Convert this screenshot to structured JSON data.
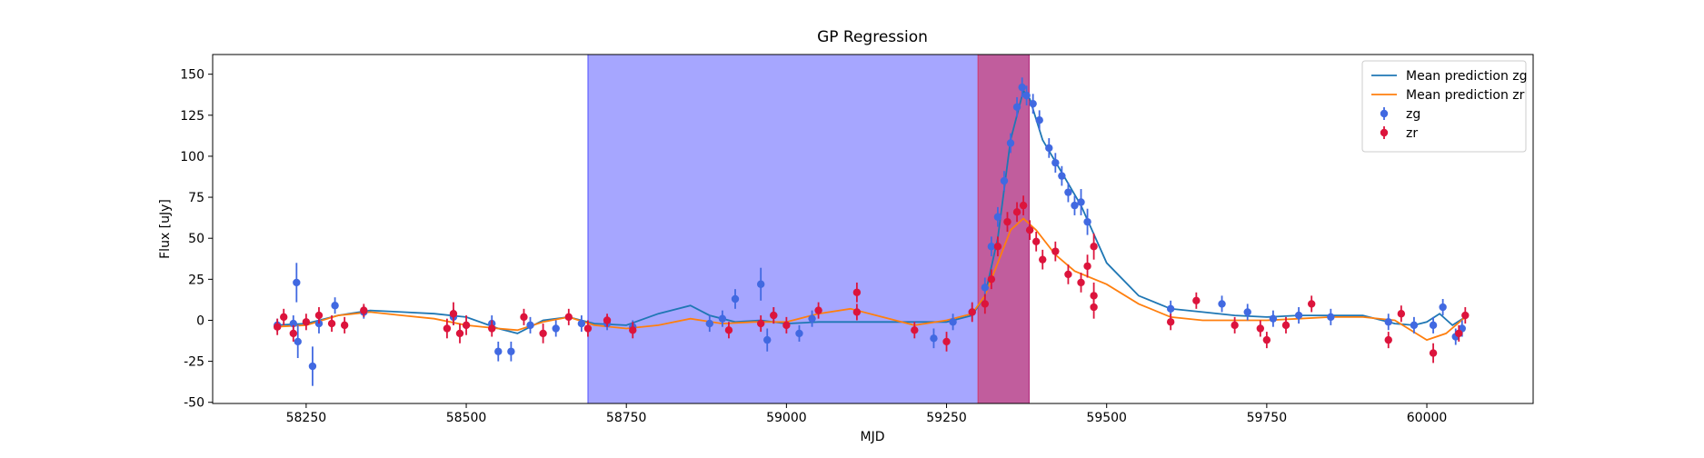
{
  "chart_data": {
    "type": "errorbar",
    "title": "GP Regression",
    "xlabel": "MJD",
    "ylabel": "Flux [uJy]",
    "xlim": [
      58104,
      60166
    ],
    "ylim": [
      -50.7,
      162
    ],
    "xticks": [
      58250,
      58500,
      58750,
      59000,
      59250,
      59500,
      59750,
      60000
    ],
    "yticks": [
      -50,
      -25,
      0,
      25,
      50,
      75,
      100,
      125,
      150
    ],
    "legend": "upper right",
    "spans": [
      {
        "start": 58690,
        "end": 59379,
        "color": "#0000ff",
        "alpha": 0.35
      },
      {
        "start": 59299,
        "end": 59379,
        "color": "#dc143c",
        "alpha": 0.5
      }
    ],
    "series": [
      {
        "name": "Mean prediction zg",
        "kind": "line",
        "color": "#1f77b4",
        "x": [
          58200,
          58250,
          58300,
          58350,
          58400,
          58450,
          58500,
          58550,
          58580,
          58620,
          58660,
          58700,
          58750,
          58800,
          58850,
          58880,
          58920,
          58960,
          59000,
          59050,
          59100,
          59150,
          59200,
          59250,
          59290,
          59310,
          59330,
          59350,
          59370,
          59380,
          59400,
          59430,
          59460,
          59500,
          59550,
          59600,
          59650,
          59700,
          59750,
          59800,
          59850,
          59900,
          59950,
          59980,
          60000,
          60020,
          60040,
          60060
        ],
        "values": [
          -3,
          -2,
          3,
          6,
          5,
          4,
          2,
          -5,
          -8,
          0,
          2,
          -2,
          -3,
          4,
          9,
          3,
          -1,
          0,
          -2,
          -1,
          -1,
          -1,
          -1,
          -1,
          3,
          15,
          50,
          110,
          140,
          135,
          110,
          90,
          70,
          35,
          15,
          7,
          5,
          3,
          2,
          3,
          3,
          3,
          -2,
          -3,
          -1,
          4,
          -3,
          2
        ]
      },
      {
        "name": "Mean prediction zr",
        "kind": "line",
        "color": "#ff7f0e",
        "x": [
          58200,
          58250,
          58300,
          58350,
          58400,
          58450,
          58500,
          58550,
          58580,
          58620,
          58660,
          58700,
          58750,
          58800,
          58850,
          58900,
          58950,
          59000,
          59050,
          59100,
          59150,
          59200,
          59250,
          59290,
          59310,
          59330,
          59350,
          59370,
          59390,
          59420,
          59450,
          59500,
          59550,
          59600,
          59650,
          59700,
          59750,
          59800,
          59850,
          59900,
          59950,
          60000,
          60030,
          60060
        ],
        "values": [
          -4,
          -3,
          3,
          5,
          3,
          1,
          -3,
          -5,
          -6,
          -1,
          2,
          -3,
          -5,
          -3,
          1,
          -2,
          -1,
          -1,
          4,
          7,
          2,
          -3,
          0,
          4,
          15,
          35,
          55,
          62,
          55,
          40,
          30,
          22,
          10,
          2,
          0,
          0,
          0,
          1,
          2,
          2,
          0,
          -12,
          -8,
          2
        ]
      },
      {
        "name": "zg",
        "kind": "points",
        "color": "#4169e1",
        "x": [
          58205,
          58230,
          58235,
          58237,
          58260,
          58270,
          58295,
          58340,
          58480,
          58540,
          58550,
          58570,
          58600,
          58640,
          58680,
          58720,
          58760,
          58880,
          58900,
          58920,
          58960,
          58970,
          58980,
          59020,
          59040,
          59230,
          59260,
          59290,
          59310,
          59320,
          59330,
          59340,
          59350,
          59360,
          59368,
          59375,
          59385,
          59395,
          59410,
          59420,
          59430,
          59440,
          59450,
          59460,
          59470,
          59600,
          59680,
          59720,
          59760,
          59800,
          59850,
          59940,
          59980,
          60010,
          60025,
          60045,
          60055
        ],
        "values": [
          -3,
          -2,
          23,
          -13,
          -28,
          -2,
          9,
          5,
          2,
          -2,
          -19,
          -19,
          -3,
          -5,
          -2,
          -2,
          -4,
          -2,
          1,
          13,
          22,
          -12,
          3,
          -8,
          1,
          -11,
          -1,
          5,
          20,
          45,
          63,
          85,
          108,
          130,
          142,
          137,
          132,
          122,
          105,
          96,
          88,
          78,
          70,
          72,
          60,
          7,
          10,
          5,
          1,
          3,
          2,
          -1,
          -3,
          -3,
          8,
          -10,
          -5
        ],
        "errors": [
          4,
          5,
          12,
          10,
          12,
          6,
          5,
          4,
          5,
          5,
          6,
          6,
          5,
          5,
          5,
          4,
          4,
          5,
          5,
          6,
          10,
          7,
          5,
          5,
          5,
          6,
          5,
          5,
          6,
          6,
          6,
          6,
          6,
          6,
          6,
          6,
          6,
          6,
          6,
          6,
          6,
          6,
          6,
          8,
          8,
          5,
          5,
          5,
          5,
          5,
          5,
          5,
          5,
          5,
          5,
          5,
          5
        ]
      },
      {
        "name": "zr",
        "kind": "points",
        "color": "#dc143c",
        "x": [
          58205,
          58215,
          58230,
          58250,
          58270,
          58290,
          58310,
          58340,
          58470,
          58480,
          58490,
          58500,
          58540,
          58590,
          58620,
          58660,
          58690,
          58720,
          58760,
          58910,
          58960,
          58980,
          59000,
          59050,
          59110,
          59110,
          59200,
          59250,
          59290,
          59310,
          59320,
          59330,
          59345,
          59360,
          59370,
          59380,
          59390,
          59400,
          59420,
          59440,
          59460,
          59470,
          59480,
          59480,
          59480,
          59600,
          59640,
          59700,
          59740,
          59750,
          59780,
          59820,
          59940,
          59960,
          60010,
          60050,
          60060
        ],
        "values": [
          -4,
          2,
          -8,
          -1,
          3,
          -2,
          -3,
          6,
          -5,
          4,
          -8,
          -3,
          -5,
          2,
          -8,
          2,
          -5,
          0,
          -6,
          -6,
          -2,
          3,
          -3,
          6,
          17,
          5,
          -6,
          -13,
          5,
          10,
          25,
          45,
          60,
          66,
          70,
          55,
          48,
          37,
          42,
          28,
          23,
          33,
          45,
          15,
          8,
          -1,
          12,
          -3,
          -5,
          -12,
          -3,
          10,
          -12,
          4,
          -20,
          -8,
          3
        ],
        "errors": [
          5,
          5,
          5,
          5,
          5,
          5,
          5,
          4,
          6,
          7,
          6,
          6,
          5,
          5,
          6,
          5,
          5,
          4,
          5,
          5,
          5,
          5,
          5,
          5,
          6,
          5,
          5,
          6,
          6,
          6,
          6,
          6,
          6,
          6,
          6,
          6,
          6,
          6,
          6,
          6,
          6,
          7,
          8,
          8,
          7,
          5,
          5,
          5,
          5,
          5,
          5,
          5,
          5,
          5,
          6,
          5,
          5
        ]
      }
    ]
  }
}
